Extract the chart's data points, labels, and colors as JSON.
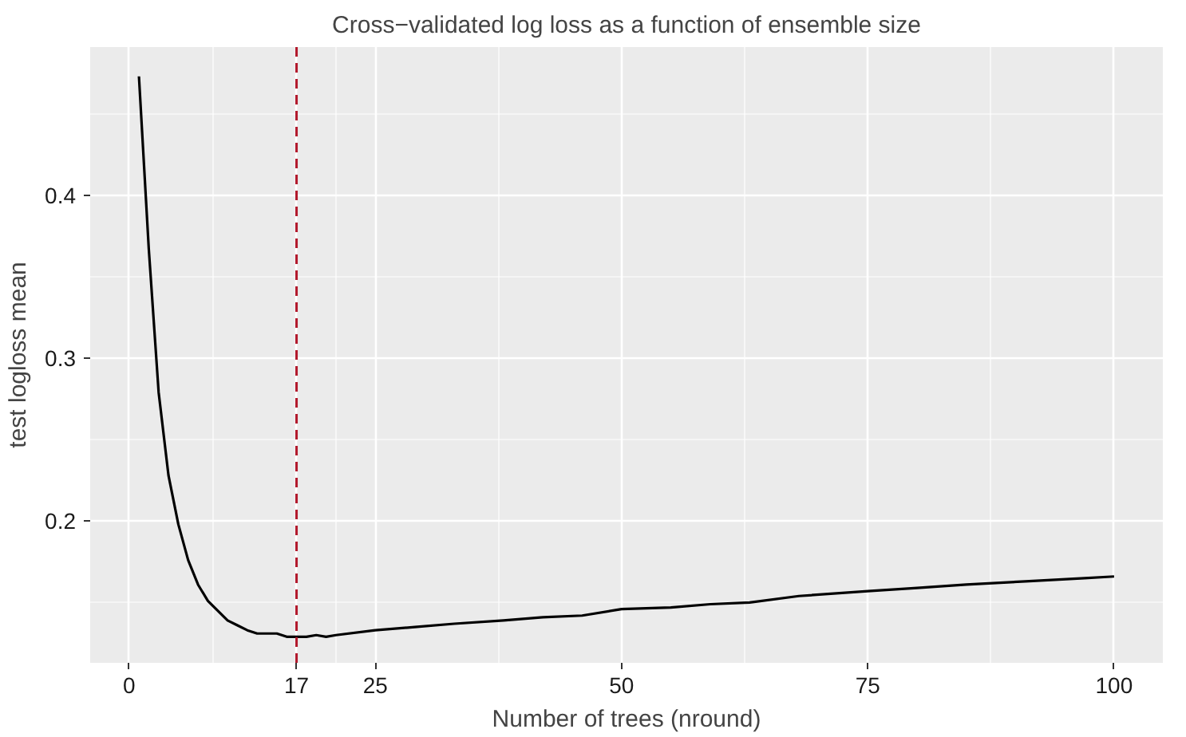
{
  "chart_data": {
    "type": "line",
    "title": "Cross−validated log loss as a function of ensemble size",
    "xlabel": "Number of trees (nround)",
    "ylabel": "test logloss mean",
    "series": [
      {
        "color": "#000000",
        "x": [
          1,
          2,
          3,
          4,
          5,
          6,
          7,
          8,
          9,
          10,
          11,
          12,
          13,
          14,
          15,
          16,
          17,
          18,
          19,
          20,
          21,
          25,
          29,
          33,
          38,
          42,
          46,
          50,
          55,
          59,
          63,
          68,
          75,
          80,
          85,
          91,
          97,
          100
        ],
        "values": [
          0.473,
          0.367,
          0.279,
          0.228,
          0.198,
          0.176,
          0.161,
          0.151,
          0.145,
          0.139,
          0.136,
          0.133,
          0.131,
          0.131,
          0.131,
          0.129,
          0.129,
          0.129,
          0.13,
          0.129,
          0.13,
          0.133,
          0.135,
          0.137,
          0.139,
          0.141,
          0.142,
          0.146,
          0.147,
          0.149,
          0.15,
          0.154,
          0.157,
          0.159,
          0.161,
          0.163,
          0.165,
          0.166
        ]
      }
    ],
    "xlim": [
      -3.95,
      104.95
    ],
    "ylim": [
      0.113,
      0.491
    ],
    "xticks": [
      0,
      17,
      25,
      50,
      75,
      100
    ],
    "yticks": [
      0.2,
      0.3,
      0.4
    ],
    "ref_lines": [
      {
        "axis": "x",
        "value": 17,
        "color": "#b2182b",
        "line_style": "dashed"
      }
    ],
    "grid": true
  }
}
